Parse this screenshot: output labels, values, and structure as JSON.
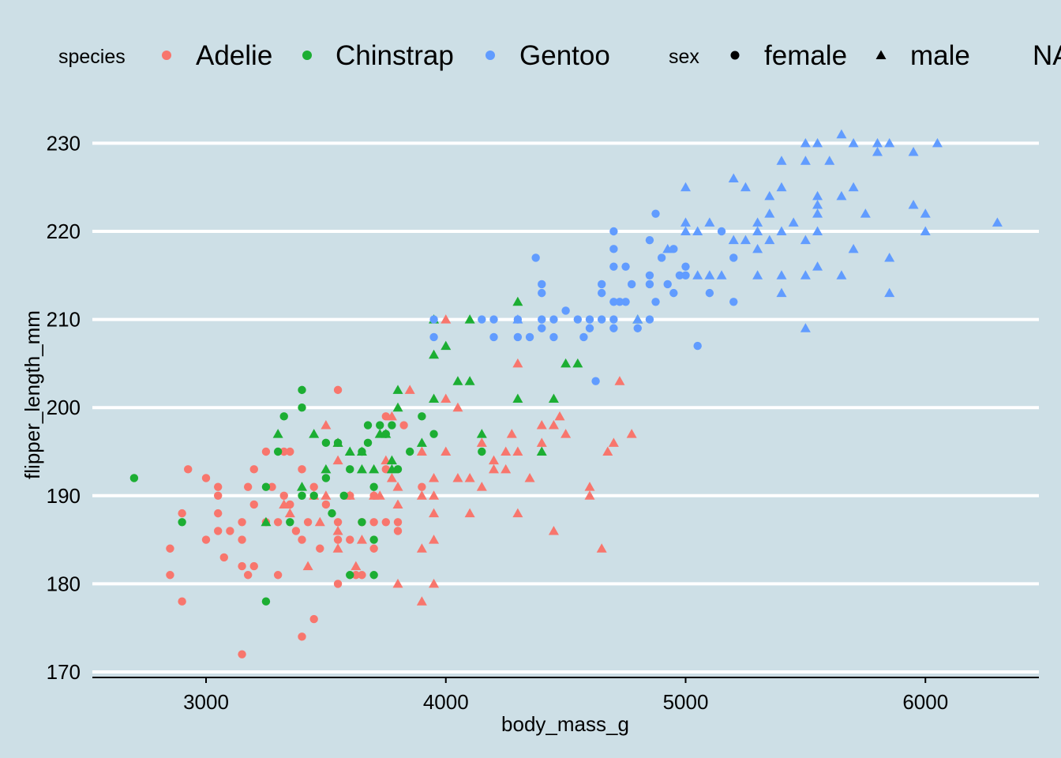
{
  "chart_data": {
    "type": "scatter",
    "xlabel": "body_mass_g",
    "ylabel": "flipper_length_mm",
    "xlim": [
      2500,
      6500
    ],
    "ylim": [
      169.5,
      233
    ],
    "x_ticks": [
      3000,
      4000,
      5000,
      6000
    ],
    "y_ticks": [
      170,
      180,
      190,
      200,
      210,
      220,
      230
    ],
    "x_tick_labels": [
      "3000",
      "4000",
      "5000",
      "6000"
    ],
    "y_tick_labels": [
      "170",
      "180",
      "190",
      "200",
      "210",
      "220",
      "230"
    ],
    "grid": "horizontal major lines",
    "legend_position": "top",
    "legend": {
      "species_title": "species",
      "sex_title": "sex",
      "species": [
        {
          "label": "Adelie",
          "color": "#F8766D"
        },
        {
          "label": "Chinstrap",
          "color": "#1CAE33"
        },
        {
          "label": "Gentoo",
          "color": "#619CFF"
        }
      ],
      "sex": [
        {
          "label": "female",
          "shape": "circle"
        },
        {
          "label": "male",
          "shape": "triangle"
        },
        {
          "label": "NA",
          "shape": "square"
        }
      ]
    },
    "series": [
      {
        "name": "Adelie",
        "color": "#F8766D",
        "female": [
          [
            2850,
            181
          ],
          [
            2850,
            184
          ],
          [
            2900,
            178
          ],
          [
            2900,
            188
          ],
          [
            2925,
            193
          ],
          [
            3000,
            185
          ],
          [
            3000,
            192
          ],
          [
            3050,
            186
          ],
          [
            3050,
            188
          ],
          [
            3050,
            190
          ],
          [
            3050,
            191
          ],
          [
            3075,
            183
          ],
          [
            3100,
            186
          ],
          [
            3150,
            172
          ],
          [
            3150,
            182
          ],
          [
            3150,
            185
          ],
          [
            3150,
            187
          ],
          [
            3175,
            181
          ],
          [
            3175,
            191
          ],
          [
            3200,
            182
          ],
          [
            3200,
            189
          ],
          [
            3200,
            193
          ],
          [
            3250,
            187
          ],
          [
            3250,
            195
          ],
          [
            3275,
            191
          ],
          [
            3300,
            181
          ],
          [
            3300,
            187
          ],
          [
            3325,
            190
          ],
          [
            3325,
            195
          ],
          [
            3350,
            189
          ],
          [
            3350,
            195
          ],
          [
            3375,
            186
          ],
          [
            3400,
            174
          ],
          [
            3400,
            185
          ],
          [
            3400,
            193
          ],
          [
            3425,
            187
          ],
          [
            3450,
            176
          ],
          [
            3450,
            191
          ],
          [
            3475,
            184
          ],
          [
            3500,
            189
          ],
          [
            3550,
            180
          ],
          [
            3550,
            185
          ],
          [
            3550,
            187
          ],
          [
            3550,
            202
          ],
          [
            3600,
            185
          ],
          [
            3600,
            190
          ],
          [
            3625,
            181
          ],
          [
            3650,
            181
          ],
          [
            3650,
            187
          ],
          [
            3700,
            184
          ],
          [
            3700,
            187
          ],
          [
            3700,
            190
          ],
          [
            3750,
            187
          ],
          [
            3750,
            193
          ],
          [
            3750,
            199
          ],
          [
            3800,
            186
          ],
          [
            3800,
            187
          ],
          [
            3825,
            198
          ],
          [
            3900,
            191
          ]
        ],
        "male": [
          [
            3325,
            189
          ],
          [
            3350,
            188
          ],
          [
            3425,
            182
          ],
          [
            3450,
            190
          ],
          [
            3475,
            187
          ],
          [
            3500,
            198
          ],
          [
            3500,
            190
          ],
          [
            3550,
            194
          ],
          [
            3550,
            196
          ],
          [
            3550,
            186
          ],
          [
            3550,
            184
          ],
          [
            3600,
            190
          ],
          [
            3625,
            182
          ],
          [
            3650,
            185
          ],
          [
            3700,
            190
          ],
          [
            3725,
            190
          ],
          [
            3750,
            194
          ],
          [
            3775,
            192
          ],
          [
            3775,
            199
          ],
          [
            3800,
            180
          ],
          [
            3800,
            191
          ],
          [
            3800,
            189
          ],
          [
            3850,
            202
          ],
          [
            3900,
            178
          ],
          [
            3900,
            190
          ],
          [
            3900,
            184
          ],
          [
            3900,
            195
          ],
          [
            3950,
            180
          ],
          [
            3950,
            190
          ],
          [
            3950,
            185
          ],
          [
            3950,
            188
          ],
          [
            3950,
            192
          ],
          [
            4000,
            195
          ],
          [
            4000,
            201
          ],
          [
            4000,
            210
          ],
          [
            4050,
            200
          ],
          [
            4050,
            192
          ],
          [
            4100,
            192
          ],
          [
            4100,
            188
          ],
          [
            4150,
            191
          ],
          [
            4150,
            196
          ],
          [
            4200,
            193
          ],
          [
            4200,
            194
          ],
          [
            4250,
            193
          ],
          [
            4250,
            195
          ],
          [
            4275,
            197
          ],
          [
            4300,
            195
          ],
          [
            4300,
            188
          ],
          [
            4300,
            205
          ],
          [
            4350,
            192
          ],
          [
            4400,
            198
          ],
          [
            4400,
            196
          ],
          [
            4450,
            186
          ],
          [
            4450,
            198
          ],
          [
            4475,
            199
          ],
          [
            4500,
            197
          ],
          [
            4600,
            190
          ],
          [
            4600,
            191
          ],
          [
            4650,
            184
          ],
          [
            4675,
            195
          ],
          [
            4700,
            196
          ],
          [
            4725,
            203
          ],
          [
            4775,
            197
          ]
        ]
      },
      {
        "name": "Chinstrap",
        "color": "#1CAE33",
        "female": [
          [
            2700,
            192
          ],
          [
            2900,
            187
          ],
          [
            3250,
            178
          ],
          [
            3250,
            191
          ],
          [
            3300,
            195
          ],
          [
            3325,
            199
          ],
          [
            3350,
            187
          ],
          [
            3400,
            190
          ],
          [
            3400,
            200
          ],
          [
            3400,
            202
          ],
          [
            3450,
            190
          ],
          [
            3500,
            192
          ],
          [
            3500,
            196
          ],
          [
            3525,
            188
          ],
          [
            3550,
            196
          ],
          [
            3575,
            190
          ],
          [
            3600,
            181
          ],
          [
            3600,
            193
          ],
          [
            3650,
            187
          ],
          [
            3650,
            195
          ],
          [
            3675,
            196
          ],
          [
            3675,
            198
          ],
          [
            3700,
            185
          ],
          [
            3700,
            181
          ],
          [
            3700,
            191
          ],
          [
            3725,
            198
          ],
          [
            3750,
            197
          ],
          [
            3775,
            198
          ],
          [
            3800,
            193
          ],
          [
            3850,
            195
          ],
          [
            3900,
            199
          ],
          [
            3950,
            197
          ],
          [
            4150,
            195
          ]
        ],
        "male": [
          [
            3250,
            187
          ],
          [
            3300,
            197
          ],
          [
            3400,
            191
          ],
          [
            3450,
            197
          ],
          [
            3500,
            193
          ],
          [
            3550,
            196
          ],
          [
            3600,
            195
          ],
          [
            3650,
            193
          ],
          [
            3650,
            195
          ],
          [
            3700,
            193
          ],
          [
            3725,
            197
          ],
          [
            3750,
            197
          ],
          [
            3775,
            194
          ],
          [
            3775,
            193
          ],
          [
            3800,
            200
          ],
          [
            3800,
            202
          ],
          [
            3900,
            196
          ],
          [
            3950,
            201
          ],
          [
            3950,
            206
          ],
          [
            3950,
            210
          ],
          [
            4000,
            207
          ],
          [
            4050,
            203
          ],
          [
            4100,
            203
          ],
          [
            4100,
            210
          ],
          [
            4150,
            197
          ],
          [
            4300,
            201
          ],
          [
            4300,
            212
          ],
          [
            4400,
            195
          ],
          [
            4450,
            201
          ],
          [
            4500,
            205
          ],
          [
            4550,
            205
          ],
          [
            4800,
            210
          ]
        ]
      },
      {
        "name": "Gentoo",
        "color": "#619CFF",
        "female": [
          [
            3950,
            208
          ],
          [
            3950,
            210
          ],
          [
            4150,
            210
          ],
          [
            4200,
            208
          ],
          [
            4200,
            210
          ],
          [
            4300,
            208
          ],
          [
            4300,
            210
          ],
          [
            4350,
            208
          ],
          [
            4375,
            217
          ],
          [
            4400,
            209
          ],
          [
            4400,
            213
          ],
          [
            4400,
            214
          ],
          [
            4400,
            210
          ],
          [
            4450,
            210
          ],
          [
            4450,
            208
          ],
          [
            4500,
            211
          ],
          [
            4550,
            210
          ],
          [
            4575,
            208
          ],
          [
            4600,
            209
          ],
          [
            4600,
            210
          ],
          [
            4625,
            203
          ],
          [
            4650,
            210
          ],
          [
            4650,
            213
          ],
          [
            4650,
            214
          ],
          [
            4700,
            209
          ],
          [
            4700,
            210
          ],
          [
            4700,
            212
          ],
          [
            4700,
            216
          ],
          [
            4700,
            218
          ],
          [
            4700,
            220
          ],
          [
            4725,
            212
          ],
          [
            4750,
            212
          ],
          [
            4750,
            216
          ],
          [
            4775,
            214
          ],
          [
            4800,
            209
          ],
          [
            4850,
            210
          ],
          [
            4850,
            214
          ],
          [
            4850,
            215
          ],
          [
            4850,
            219
          ],
          [
            4875,
            222
          ],
          [
            4875,
            212
          ],
          [
            4900,
            217
          ],
          [
            4925,
            214
          ],
          [
            4950,
            213
          ],
          [
            4950,
            218
          ],
          [
            4975,
            215
          ],
          [
            5000,
            215
          ],
          [
            5000,
            216
          ],
          [
            5050,
            207
          ],
          [
            5100,
            213
          ],
          [
            5150,
            220
          ],
          [
            5200,
            212
          ],
          [
            5200,
            217
          ]
        ],
        "male": [
          [
            4300,
            210
          ],
          [
            4800,
            210
          ],
          [
            4925,
            218
          ],
          [
            5000,
            220
          ],
          [
            5000,
            221
          ],
          [
            5000,
            225
          ],
          [
            5050,
            215
          ],
          [
            5050,
            220
          ],
          [
            5100,
            215
          ],
          [
            5100,
            221
          ],
          [
            5150,
            215
          ],
          [
            5200,
            219
          ],
          [
            5200,
            226
          ],
          [
            5250,
            219
          ],
          [
            5250,
            225
          ],
          [
            5300,
            215
          ],
          [
            5300,
            218
          ],
          [
            5300,
            220
          ],
          [
            5300,
            221
          ],
          [
            5350,
            219
          ],
          [
            5350,
            222
          ],
          [
            5350,
            224
          ],
          [
            5400,
            213
          ],
          [
            5400,
            215
          ],
          [
            5400,
            220
          ],
          [
            5400,
            225
          ],
          [
            5400,
            228
          ],
          [
            5450,
            221
          ],
          [
            5500,
            209
          ],
          [
            5500,
            215
          ],
          [
            5500,
            219
          ],
          [
            5500,
            228
          ],
          [
            5500,
            230
          ],
          [
            5550,
            216
          ],
          [
            5550,
            220
          ],
          [
            5550,
            222
          ],
          [
            5550,
            223
          ],
          [
            5550,
            224
          ],
          [
            5550,
            230
          ],
          [
            5600,
            228
          ],
          [
            5650,
            215
          ],
          [
            5650,
            224
          ],
          [
            5650,
            231
          ],
          [
            5700,
            218
          ],
          [
            5700,
            225
          ],
          [
            5700,
            230
          ],
          [
            5750,
            222
          ],
          [
            5800,
            229
          ],
          [
            5800,
            230
          ],
          [
            5850,
            213
          ],
          [
            5850,
            217
          ],
          [
            5850,
            230
          ],
          [
            5950,
            223
          ],
          [
            5950,
            229
          ],
          [
            6000,
            220
          ],
          [
            6000,
            222
          ],
          [
            6050,
            230
          ],
          [
            6300,
            221
          ]
        ]
      }
    ]
  }
}
